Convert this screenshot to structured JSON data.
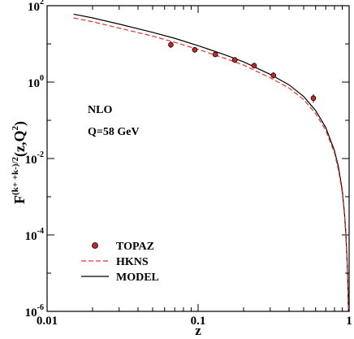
{
  "chart_data": {
    "type": "line",
    "xscale": "log",
    "yscale": "log",
    "xlim": [
      0.01,
      1
    ],
    "ylim": [
      1e-06,
      100
    ],
    "xlabel": "z",
    "ylabel_parts": {
      "base": "F",
      "superscript": "(k+ +k-)/2",
      "args": "(z,Q",
      "args_sup": "2",
      "close": ")"
    },
    "x_tick_labels": [
      "0.01",
      "0.1",
      "1"
    ],
    "y_tick_labels": [
      {
        "base": "10",
        "exp": "-6"
      },
      {
        "base": "10",
        "exp": "-4"
      },
      {
        "base": "10",
        "exp": "-2"
      },
      {
        "base": "10",
        "exp": "0"
      },
      {
        "base": "10",
        "exp": "2"
      }
    ],
    "annotations": [
      "NLO",
      "Q=58 GeV"
    ],
    "legend": {
      "placement": "bottom-left",
      "entries": [
        "TOPAZ",
        "HKNS",
        "MODEL"
      ]
    },
    "series": [
      {
        "name": "MODEL",
        "style": "solid",
        "color": "#000000",
        "x": [
          0.015,
          0.02,
          0.03,
          0.05,
          0.07,
          0.1,
          0.15,
          0.2,
          0.3,
          0.4,
          0.5,
          0.6,
          0.7,
          0.8,
          0.85,
          0.9,
          0.93,
          0.95,
          0.97,
          0.98,
          0.99
        ],
        "y": [
          60,
          48,
          33,
          20,
          14,
          9,
          5.2,
          3.4,
          1.6,
          0.85,
          0.42,
          0.18,
          0.065,
          0.016,
          0.006,
          0.0015,
          0.0004,
          0.00012,
          2e-05,
          6e-06,
          1e-06
        ]
      },
      {
        "name": "HKNS",
        "style": "dashed",
        "color": "#e8322b",
        "x": [
          0.015,
          0.02,
          0.03,
          0.05,
          0.07,
          0.1,
          0.15,
          0.2,
          0.3,
          0.4,
          0.5,
          0.6,
          0.7,
          0.8,
          0.85,
          0.9,
          0.93,
          0.95,
          0.97,
          0.98,
          0.99
        ],
        "y": [
          48,
          38,
          26,
          16,
          11,
          7.2,
          4.2,
          2.8,
          1.3,
          0.7,
          0.35,
          0.15,
          0.055,
          0.014,
          0.005,
          0.0013,
          0.00035,
          0.0001,
          1.8e-05,
          5e-06,
          1e-06
        ]
      },
      {
        "name": "TOPAZ",
        "style": "markers",
        "color": "#e8322b",
        "x": [
          0.066,
          0.095,
          0.13,
          0.175,
          0.235,
          0.315,
          0.58
        ],
        "y": [
          9.5,
          7.0,
          5.3,
          3.8,
          2.7,
          1.5,
          0.38
        ],
        "yerr_lo": [
          7.8,
          5.9,
          4.5,
          3.2,
          2.3,
          1.25,
          0.29
        ],
        "yerr_hi": [
          11.5,
          8.3,
          6.2,
          4.5,
          3.2,
          1.8,
          0.48
        ]
      }
    ]
  }
}
